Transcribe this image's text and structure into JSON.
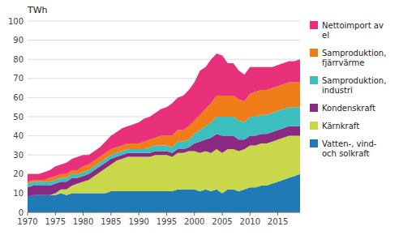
{
  "chart_data": {
    "type": "area",
    "stacked": true,
    "y_label": "TWh",
    "x": [
      1970,
      1971,
      1972,
      1973,
      1974,
      1975,
      1976,
      1977,
      1978,
      1979,
      1980,
      1981,
      1982,
      1983,
      1984,
      1985,
      1986,
      1987,
      1988,
      1989,
      1990,
      1991,
      1992,
      1993,
      1994,
      1995,
      1996,
      1997,
      1998,
      1999,
      2000,
      2001,
      2002,
      2003,
      2004,
      2005,
      2006,
      2007,
      2008,
      2009,
      2010,
      2011,
      2012,
      2013,
      2014,
      2015,
      2016,
      2017,
      2018,
      2019
    ],
    "series": [
      {
        "name": "Vatten-, vind-\noch solkraft",
        "color": "#1f7ab5",
        "values": [
          8,
          9,
          9,
          9,
          9,
          9,
          10,
          9,
          10,
          10,
          10,
          10,
          10,
          10,
          10,
          11,
          11,
          11,
          11,
          11,
          11,
          11,
          11,
          11,
          11,
          11,
          11,
          12,
          12,
          12,
          12,
          11,
          12,
          11,
          12,
          10,
          12,
          12,
          11,
          12,
          13,
          13,
          14,
          14,
          15,
          16,
          17,
          18,
          19,
          20
        ]
      },
      {
        "name": "Kärnkraft",
        "color": "#c8d84a",
        "values": [
          0,
          0,
          0,
          0,
          0,
          1,
          2,
          3,
          4,
          5,
          6,
          7,
          9,
          11,
          13,
          14,
          16,
          17,
          18,
          18,
          18,
          18,
          18,
          19,
          19,
          19,
          18,
          19,
          19,
          20,
          20,
          20,
          20,
          20,
          21,
          21,
          21,
          21,
          21,
          21,
          22,
          22,
          22,
          22,
          22,
          22,
          22,
          22,
          21,
          20
        ]
      },
      {
        "name": "Kondenskraft",
        "color": "#8b2882",
        "values": [
          5,
          5,
          5,
          5,
          5,
          5,
          4,
          4,
          4,
          3,
          3,
          3,
          3,
          3,
          3,
          3,
          2,
          2,
          2,
          2,
          2,
          2,
          2,
          2,
          2,
          2,
          2,
          2,
          2,
          2,
          4,
          6,
          6,
          8,
          8,
          9,
          7,
          7,
          6,
          5,
          5,
          5,
          5,
          5,
          5,
          5,
          5,
          5,
          5,
          5
        ]
      },
      {
        "name": "Samproduktion,\nindustri",
        "color": "#3dbfbf",
        "values": [
          2,
          2,
          2,
          2,
          2,
          2,
          2,
          2,
          2,
          2,
          2,
          2,
          2,
          2,
          2,
          2,
          2,
          2,
          2,
          2,
          2,
          2,
          3,
          3,
          3,
          3,
          3,
          4,
          4,
          4,
          5,
          6,
          7,
          8,
          9,
          10,
          10,
          10,
          10,
          9,
          10,
          10,
          10,
          10,
          10,
          10,
          10,
          10,
          10,
          10
        ]
      },
      {
        "name": "Samproduktion,\nfjärrvärme",
        "color": "#f07d1a",
        "values": [
          1,
          1,
          1,
          1,
          2,
          2,
          2,
          2,
          2,
          2,
          3,
          3,
          3,
          3,
          3,
          3,
          3,
          3,
          3,
          3,
          3,
          4,
          4,
          4,
          5,
          5,
          6,
          6,
          6,
          7,
          7,
          8,
          9,
          10,
          11,
          11,
          11,
          11,
          11,
          11,
          12,
          13,
          13,
          13,
          13,
          13,
          13,
          13,
          13,
          13
        ]
      },
      {
        "name": "Nettoimport av\nel",
        "color": "#e8317a",
        "values": [
          4,
          3,
          3,
          4,
          4,
          5,
          5,
          6,
          6,
          7,
          6,
          5,
          5,
          5,
          6,
          7,
          8,
          9,
          9,
          10,
          11,
          12,
          12,
          13,
          14,
          15,
          17,
          17,
          18,
          19,
          20,
          23,
          22,
          23,
          22,
          21,
          17,
          17,
          15,
          14,
          14,
          13,
          12,
          12,
          11,
          11,
          11,
          11,
          11,
          12
        ]
      }
    ],
    "xlim": [
      1970,
      2019
    ],
    "xticks": [
      1970,
      1975,
      1980,
      1985,
      1990,
      1995,
      2000,
      2005,
      2010,
      2015
    ],
    "ylim": [
      0,
      100
    ],
    "yticks": [
      0,
      10,
      20,
      30,
      40,
      50,
      60,
      70,
      80,
      90,
      100
    ],
    "grid": true,
    "legend": "right"
  }
}
